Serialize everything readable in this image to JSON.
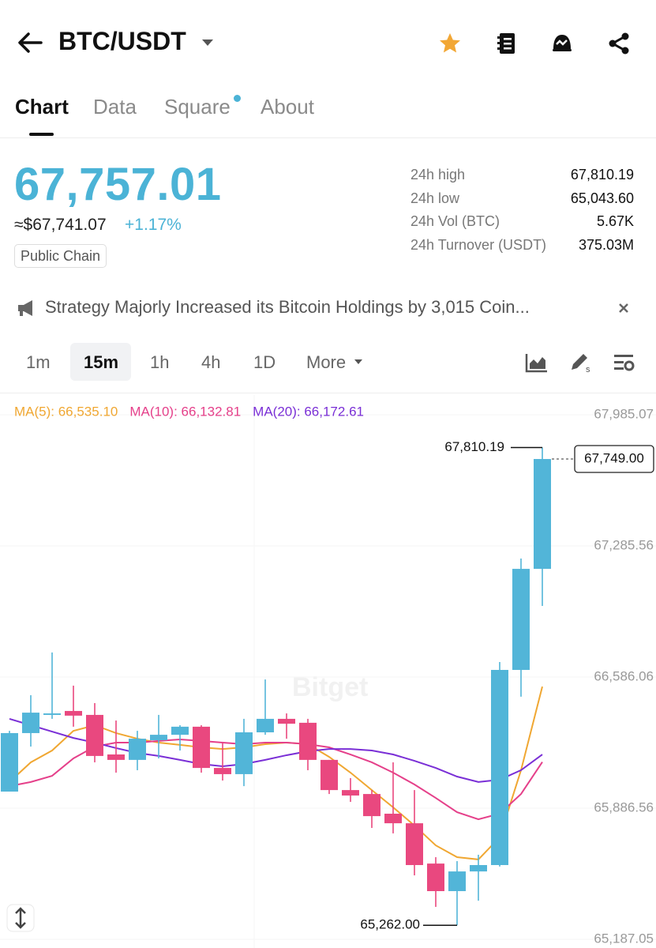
{
  "header": {
    "title": "BTC/USDT"
  },
  "tabs": [
    "Chart",
    "Data",
    "Square",
    "About"
  ],
  "ticker": {
    "price": "67,757.01",
    "fiat_price": "≈$67,741.07",
    "change": "+1.17%",
    "badge": "Public Chain",
    "stats": [
      {
        "label": "24h high",
        "value": "67,810.19"
      },
      {
        "label": "24h low",
        "value": "65,043.60"
      },
      {
        "label": "24h Vol (BTC)",
        "value": "5.67K"
      },
      {
        "label": "24h Turnover (USDT)",
        "value": "375.03M"
      }
    ]
  },
  "news": "Strategy Majorly Increased its Bitcoin Holdings by 3,015 Coin...",
  "intervals": [
    "1m",
    "15m",
    "1h",
    "4h",
    "1D",
    "More"
  ],
  "chart_data": {
    "type": "candlestick",
    "watermark": "Bitget",
    "up_color": "#52b5d8",
    "down_color": "#e9487f",
    "open": [
      65975,
      66287,
      66384,
      66405,
      66384,
      66173,
      66144,
      66249,
      66278,
      66321,
      66101,
      66068,
      66291,
      66363,
      66342,
      66144,
      65983,
      65962,
      65857,
      65806,
      65591,
      65444,
      65549,
      65583,
      66624,
      67163
    ],
    "high": [
      66299,
      66489,
      66717,
      66540,
      66447,
      66354,
      66299,
      66384,
      66329,
      66329,
      66236,
      66363,
      66573,
      66392,
      66363,
      66144,
      66047,
      65983,
      66131,
      65983,
      65625,
      65604,
      65638,
      66666,
      67218,
      67810.19
    ],
    "low": [
      65975,
      66215,
      66363,
      66321,
      66131,
      66076,
      66089,
      66152,
      66194,
      66076,
      66034,
      66004,
      66278,
      66257,
      66089,
      65962,
      65920,
      65781,
      65752,
      65528,
      65360,
      65262,
      65393,
      65575,
      66481,
      66965
    ],
    "close": [
      66287,
      66396,
      66392,
      66380,
      66165,
      66144,
      66257,
      66278,
      66321,
      66101,
      66068,
      66291,
      66363,
      66337,
      66144,
      65983,
      65954,
      65844,
      65806,
      65583,
      65444,
      65549,
      65583,
      66624,
      67163,
      67749
    ],
    "series": [
      {
        "name": "MA(5)",
        "legend": "MA(5): 66,535.10",
        "color": "#f0a732",
        "values": [
          66026,
          66131,
          66194,
          66299,
          66329,
          66287,
          66257,
          66236,
          66224,
          66211,
          66202,
          66211,
          66228,
          66236,
          66228,
          66160,
          66076,
          65983,
          65891,
          65794,
          65688,
          65625,
          65613,
          65731,
          66089,
          66535.1
        ]
      },
      {
        "name": "MA(10)",
        "legend": "MA(10): 66,132.81",
        "color": "#e5408a",
        "values": [
          66004,
          66026,
          66059,
          66152,
          66215,
          66236,
          66236,
          66245,
          66253,
          66245,
          66236,
          66228,
          66236,
          66236,
          66228,
          66211,
          66173,
          66131,
          66076,
          66013,
          65941,
          65865,
          65827,
          65857,
          65962,
          66132.81
        ]
      },
      {
        "name": "MA(20)",
        "legend": "MA(20): 66,172.61",
        "color": "#7a2fd6",
        "values": [
          66363,
          66329,
          66295,
          66261,
          66236,
          66207,
          66181,
          66165,
          66144,
          66122,
          66110,
          66122,
          66144,
          66169,
          66190,
          66202,
          66202,
          66194,
          66173,
          66139,
          66101,
          66055,
          66026,
          66038,
          66089,
          66172.61
        ]
      }
    ],
    "ylim": [
      65140.6,
      68090.4
    ],
    "yticks": [
      {
        "value": 67985.07,
        "label": "67,985.07"
      },
      {
        "value": 67285.56,
        "label": "67,285.56"
      },
      {
        "value": 66586.06,
        "label": "66,586.06"
      },
      {
        "value": 65886.56,
        "label": "65,886.56"
      },
      {
        "value": 65187.05,
        "label": "65,187.05"
      }
    ],
    "grid": true,
    "high_label": "67,810.19",
    "low_label": "65,262.00",
    "last_label": "67,749.00"
  }
}
